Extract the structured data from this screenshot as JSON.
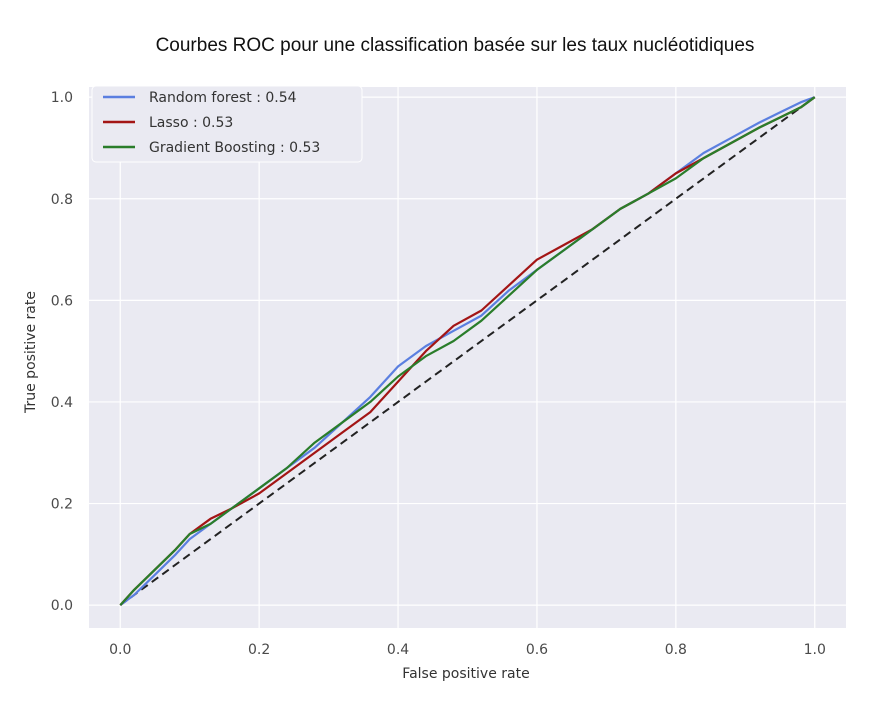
{
  "chart_data": {
    "type": "line",
    "title": "Courbes ROC pour une classification basée sur les taux nucléotidiques",
    "xlabel": "False positive rate",
    "ylabel": "True positive rate",
    "xlim": [
      -0.045,
      1.045
    ],
    "ylim": [
      -0.045,
      1.02
    ],
    "xticks": [
      0.0,
      0.2,
      0.4,
      0.6,
      0.8,
      1.0
    ],
    "xtick_labels": [
      "0.0",
      "0.2",
      "0.4",
      "0.6",
      "0.8",
      "1.0"
    ],
    "yticks": [
      0.0,
      0.2,
      0.4,
      0.6,
      0.8,
      1.0
    ],
    "ytick_labels": [
      "0.0",
      "0.2",
      "0.4",
      "0.6",
      "0.8",
      "1.0"
    ],
    "grid": true,
    "legend_position": "top-left",
    "series": [
      {
        "name": "Random forest : 0.54",
        "color": "#5b7fe0",
        "x": [
          0,
          0.02,
          0.05,
          0.08,
          0.1,
          0.13,
          0.16,
          0.2,
          0.24,
          0.28,
          0.32,
          0.36,
          0.4,
          0.44,
          0.48,
          0.52,
          0.56,
          0.6,
          0.64,
          0.68,
          0.72,
          0.76,
          0.8,
          0.84,
          0.88,
          0.92,
          0.95,
          0.98,
          1.0
        ],
        "y": [
          0,
          0.02,
          0.06,
          0.1,
          0.13,
          0.16,
          0.19,
          0.23,
          0.27,
          0.31,
          0.36,
          0.41,
          0.47,
          0.51,
          0.54,
          0.57,
          0.62,
          0.66,
          0.7,
          0.74,
          0.78,
          0.81,
          0.85,
          0.89,
          0.92,
          0.95,
          0.97,
          0.99,
          1.0
        ]
      },
      {
        "name": "Lasso : 0.53",
        "color": "#a31515",
        "x": [
          0,
          0.02,
          0.05,
          0.08,
          0.1,
          0.13,
          0.16,
          0.2,
          0.24,
          0.28,
          0.32,
          0.36,
          0.4,
          0.44,
          0.48,
          0.52,
          0.56,
          0.6,
          0.64,
          0.68,
          0.72,
          0.76,
          0.8,
          0.84,
          0.88,
          0.92,
          0.95,
          0.98,
          1.0
        ],
        "y": [
          0,
          0.03,
          0.07,
          0.11,
          0.14,
          0.17,
          0.19,
          0.22,
          0.26,
          0.3,
          0.34,
          0.38,
          0.44,
          0.5,
          0.55,
          0.58,
          0.63,
          0.68,
          0.71,
          0.74,
          0.78,
          0.81,
          0.85,
          0.88,
          0.91,
          0.94,
          0.96,
          0.98,
          1.0
        ]
      },
      {
        "name": "Gradient Boosting : 0.53",
        "color": "#2a7d2a",
        "x": [
          0,
          0.02,
          0.05,
          0.08,
          0.1,
          0.13,
          0.16,
          0.2,
          0.24,
          0.28,
          0.32,
          0.36,
          0.4,
          0.44,
          0.48,
          0.52,
          0.56,
          0.6,
          0.64,
          0.68,
          0.72,
          0.76,
          0.8,
          0.84,
          0.88,
          0.92,
          0.95,
          0.98,
          1.0
        ],
        "y": [
          0,
          0.03,
          0.07,
          0.11,
          0.14,
          0.16,
          0.19,
          0.23,
          0.27,
          0.32,
          0.36,
          0.4,
          0.45,
          0.49,
          0.52,
          0.56,
          0.61,
          0.66,
          0.7,
          0.74,
          0.78,
          0.81,
          0.84,
          0.88,
          0.91,
          0.94,
          0.96,
          0.98,
          1.0
        ]
      },
      {
        "name": "",
        "color": "#222222",
        "style": "dashed",
        "x": [
          0,
          1
        ],
        "y": [
          0,
          1
        ]
      }
    ]
  }
}
